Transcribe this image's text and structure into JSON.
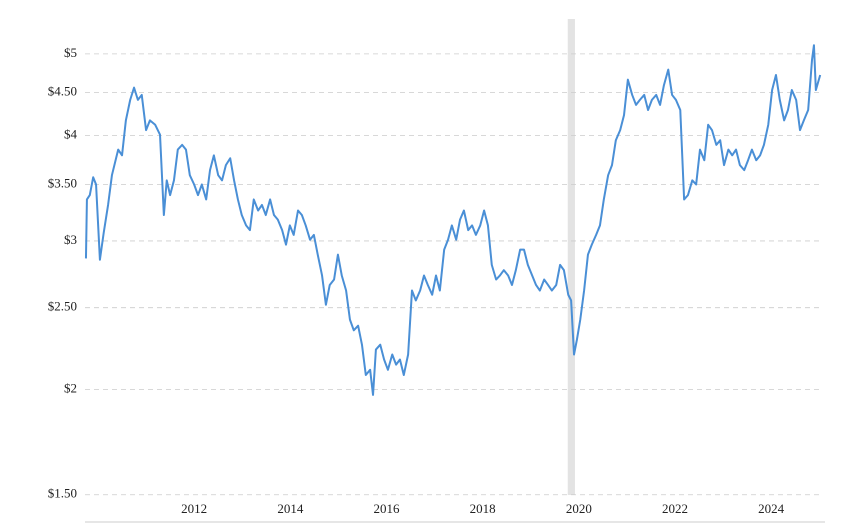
{
  "chart_data": {
    "type": "line",
    "log_scale_y": true,
    "grid": true,
    "x": [
      2009.75,
      2009.77,
      2009.83,
      2009.9,
      2009.96,
      2010.04,
      2010.12,
      2010.21,
      2010.29,
      2010.42,
      2010.5,
      2010.58,
      2010.67,
      2010.75,
      2010.83,
      2010.91,
      2011.0,
      2011.08,
      2011.19,
      2011.29,
      2011.37,
      2011.43,
      2011.5,
      2011.58,
      2011.66,
      2011.75,
      2011.83,
      2011.91,
      2012.0,
      2012.08,
      2012.16,
      2012.25,
      2012.33,
      2012.41,
      2012.5,
      2012.58,
      2012.66,
      2012.75,
      2012.83,
      2012.91,
      2012.99,
      2013.08,
      2013.16,
      2013.24,
      2013.33,
      2013.41,
      2013.49,
      2013.58,
      2013.66,
      2013.74,
      2013.83,
      2013.91,
      2013.99,
      2014.07,
      2014.16,
      2014.24,
      2014.32,
      2014.41,
      2014.49,
      2014.57,
      2014.66,
      2014.74,
      2014.82,
      2014.91,
      2014.99,
      2015.07,
      2015.16,
      2015.24,
      2015.32,
      2015.41,
      2015.49,
      2015.57,
      2015.66,
      2015.72,
      2015.78,
      2015.87,
      2015.95,
      2016.03,
      2016.12,
      2016.2,
      2016.28,
      2016.36,
      2016.45,
      2016.53,
      2016.61,
      2016.7,
      2016.78,
      2016.86,
      2016.95,
      2017.03,
      2017.11,
      2017.2,
      2017.28,
      2017.36,
      2017.45,
      2017.53,
      2017.61,
      2017.7,
      2017.78,
      2017.86,
      2017.95,
      2018.03,
      2018.11,
      2018.19,
      2018.28,
      2018.36,
      2018.44,
      2018.53,
      2018.61,
      2018.69,
      2018.78,
      2018.86,
      2018.94,
      2019.03,
      2019.11,
      2019.19,
      2019.28,
      2019.36,
      2019.44,
      2019.53,
      2019.61,
      2019.69,
      2019.78,
      2019.84,
      2019.9,
      2019.96,
      2020.03,
      2020.11,
      2020.19,
      2020.27,
      2020.36,
      2020.44,
      2020.52,
      2020.61,
      2020.69,
      2020.77,
      2020.86,
      2020.94,
      2021.02,
      2021.11,
      2021.19,
      2021.27,
      2021.36,
      2021.44,
      2021.52,
      2021.61,
      2021.69,
      2021.77,
      2021.86,
      2021.94,
      2022.02,
      2022.11,
      2022.19,
      2022.27,
      2022.36,
      2022.44,
      2022.52,
      2022.61,
      2022.69,
      2022.77,
      2022.86,
      2022.94,
      2023.02,
      2023.11,
      2023.19,
      2023.27,
      2023.35,
      2023.44,
      2023.52,
      2023.6,
      2023.69,
      2023.77,
      2023.85,
      2023.94,
      2024.02,
      2024.1,
      2024.18,
      2024.27,
      2024.35,
      2024.43,
      2024.52,
      2024.6,
      2024.68,
      2024.77,
      2024.85,
      2024.89,
      2024.93,
      2025.02
    ],
    "series": [
      {
        "color": "#4a8fd6",
        "values": [
          2.86,
          3.36,
          3.4,
          3.57,
          3.5,
          2.85,
          3.07,
          3.31,
          3.59,
          3.85,
          3.79,
          4.17,
          4.41,
          4.56,
          4.41,
          4.47,
          4.06,
          4.17,
          4.12,
          4.01,
          3.22,
          3.54,
          3.4,
          3.54,
          3.85,
          3.9,
          3.85,
          3.59,
          3.5,
          3.4,
          3.5,
          3.36,
          3.64,
          3.79,
          3.59,
          3.54,
          3.69,
          3.76,
          3.54,
          3.36,
          3.22,
          3.13,
          3.09,
          3.36,
          3.26,
          3.31,
          3.22,
          3.36,
          3.22,
          3.18,
          3.09,
          2.97,
          3.13,
          3.05,
          3.26,
          3.22,
          3.13,
          3.01,
          3.05,
          2.89,
          2.73,
          2.52,
          2.66,
          2.7,
          2.89,
          2.73,
          2.62,
          2.42,
          2.35,
          2.38,
          2.26,
          2.08,
          2.11,
          1.97,
          2.23,
          2.26,
          2.17,
          2.11,
          2.2,
          2.14,
          2.17,
          2.08,
          2.2,
          2.62,
          2.55,
          2.62,
          2.73,
          2.66,
          2.59,
          2.73,
          2.62,
          2.93,
          3.01,
          3.13,
          3.01,
          3.18,
          3.26,
          3.09,
          3.13,
          3.05,
          3.13,
          3.26,
          3.13,
          2.81,
          2.7,
          2.73,
          2.77,
          2.73,
          2.66,
          2.77,
          2.93,
          2.93,
          2.81,
          2.73,
          2.66,
          2.62,
          2.7,
          2.66,
          2.62,
          2.66,
          2.81,
          2.77,
          2.59,
          2.55,
          2.2,
          2.29,
          2.42,
          2.62,
          2.89,
          2.97,
          3.05,
          3.13,
          3.36,
          3.59,
          3.69,
          3.95,
          4.06,
          4.23,
          4.66,
          4.47,
          4.35,
          4.41,
          4.47,
          4.29,
          4.41,
          4.47,
          4.35,
          4.59,
          4.79,
          4.47,
          4.41,
          4.29,
          3.36,
          3.4,
          3.54,
          3.5,
          3.85,
          3.74,
          4.12,
          4.06,
          3.9,
          3.95,
          3.69,
          3.85,
          3.79,
          3.85,
          3.69,
          3.64,
          3.74,
          3.85,
          3.74,
          3.79,
          3.9,
          4.12,
          4.53,
          4.72,
          4.41,
          4.17,
          4.29,
          4.53,
          4.41,
          4.06,
          4.17,
          4.29,
          4.92,
          5.12,
          4.53,
          4.72
        ]
      }
    ],
    "xlim": [
      2009.73,
      2025.12
    ],
    "xticks": [
      2012,
      2014,
      2016,
      2018,
      2020,
      2022,
      2024
    ],
    "ylim": [
      1.4,
      5.5
    ],
    "yticks": [
      {
        "value": 1.5,
        "label": "$1.50"
      },
      {
        "value": 2,
        "label": "$2"
      },
      {
        "value": 2.5,
        "label": "$2.50"
      },
      {
        "value": 3,
        "label": "$3"
      },
      {
        "value": 3.5,
        "label": "$3.50"
      },
      {
        "value": 4,
        "label": "$4"
      },
      {
        "value": 4.5,
        "label": "$4.50"
      },
      {
        "value": 5,
        "label": "$5"
      }
    ],
    "shaded_ranges": [
      [
        2019.77,
        2019.92
      ]
    ],
    "shaded_color": "#e3e3e3"
  }
}
